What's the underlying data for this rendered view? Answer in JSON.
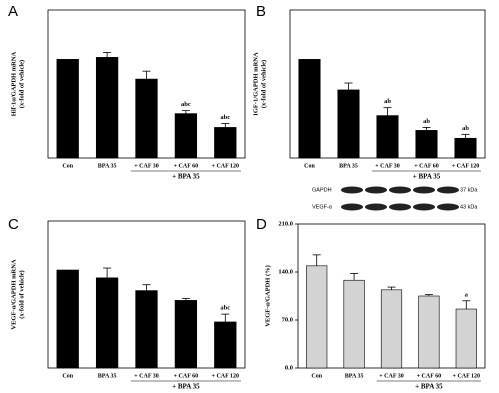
{
  "chart_data": [
    {
      "type": "bar",
      "panel": "A",
      "y_label": [
        "Hif-1α/GAPDH mRNA",
        "(x-fold of vehicle)"
      ],
      "categories": [
        "Con",
        "BPA 35",
        "+ CAF 30",
        "+ CAF 60",
        "+ CAF 120"
      ],
      "group_label": "+ BPA 35",
      "values": [
        1.0,
        1.02,
        0.8,
        0.45,
        0.31
      ],
      "errors": [
        0,
        0.05,
        0.08,
        0.03,
        0.04
      ],
      "annotations": [
        null,
        null,
        null,
        "abc",
        "abc"
      ],
      "color": "#000000",
      "ylim": [
        0,
        1.5
      ]
    },
    {
      "type": "bar",
      "panel": "B",
      "y_label": [
        "IGF-1/GAPDH mRNA",
        "(x-fold of vehicle)"
      ],
      "categories": [
        "Con",
        "BPA 35",
        "+ CAF 30",
        "+ CAF 60",
        "+ CAF 120"
      ],
      "group_label": "+ BPA 35",
      "values": [
        1.0,
        0.69,
        0.43,
        0.28,
        0.2
      ],
      "errors": [
        0,
        0.07,
        0.08,
        0.03,
        0.04
      ],
      "annotations": [
        null,
        null,
        "ab",
        "ab",
        "ab"
      ],
      "color": "#000000",
      "ylim": [
        0,
        1.5
      ]
    },
    {
      "type": "bar",
      "panel": "C",
      "y_label": [
        "VEGF-α/GAPDH mRNA",
        "(x-fold of vehicle)"
      ],
      "categories": [
        "Con",
        "BPA 35",
        "+ CAF 30",
        "+ CAF 60",
        "+ CAF 120"
      ],
      "group_label": "+ BPA 35",
      "values": [
        1.0,
        0.92,
        0.79,
        0.69,
        0.47
      ],
      "errors": [
        0,
        0.1,
        0.06,
        0.02,
        0.08
      ],
      "annotations": [
        null,
        null,
        null,
        null,
        "abc"
      ],
      "color": "#000000",
      "ylim": [
        0,
        1.5
      ]
    },
    {
      "type": "bar",
      "panel": "D",
      "y_label": [
        "VEGF-α/GAPDH (%)"
      ],
      "categories": [
        "Con",
        "BPA 35",
        "+ CAF 30",
        "+ CAF 60",
        "+ CAF 120"
      ],
      "group_label": "+ BPA 35",
      "values": [
        149,
        128,
        114,
        105,
        86
      ],
      "errors": [
        16,
        10,
        4,
        2,
        12
      ],
      "annotations": [
        null,
        null,
        null,
        null,
        "a"
      ],
      "color": "#d3d3d3",
      "ylim": [
        0,
        210
      ],
      "yticks": [
        {
          "value": 0,
          "label": "0.0"
        },
        {
          "value": 70,
          "label": "70.0"
        },
        {
          "value": 140,
          "label": "140.0"
        },
        {
          "value": 210,
          "label": "210.0"
        }
      ]
    }
  ],
  "blot": {
    "rows": [
      "GAPDH",
      "VEGF-α"
    ],
    "sizes": [
      "37 kDa",
      "43 kDa"
    ]
  }
}
